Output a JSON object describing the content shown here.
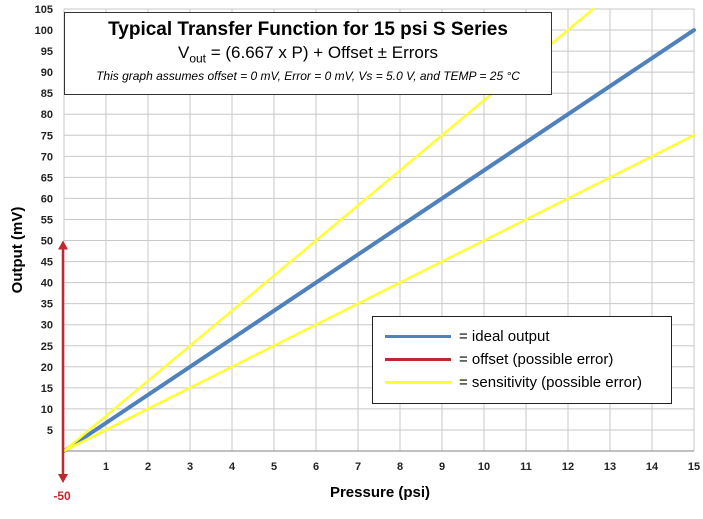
{
  "chart_data": {
    "type": "line",
    "title": "Typical Transfer Function for 15 psi S Series",
    "formula": {
      "prefix": "V",
      "subscript": "out",
      "rest": " = (6.667 x  P) + Offset ± Errors"
    },
    "note": "This graph assumes offset = 0 mV, Error = 0 mV, Vs = 5.0 V, and TEMP = 25 °C",
    "xlabel": "Pressure (psi)",
    "ylabel": "Output (mV)",
    "xlim": [
      0,
      15
    ],
    "ylim": [
      0,
      105
    ],
    "x_ticks": [
      "1",
      "2",
      "3",
      "4",
      "5",
      "6",
      "7",
      "8",
      "9",
      "10",
      "11",
      "12",
      "13",
      "14",
      "15"
    ],
    "y_ticks": [
      "5",
      "10",
      "15",
      "20",
      "25",
      "30",
      "35",
      "40",
      "45",
      "50",
      "55",
      "60",
      "65",
      "70",
      "75",
      "80",
      "85",
      "90",
      "95",
      "100",
      "105"
    ],
    "offset_label": "-50",
    "grid": true,
    "legend_position": "bottom-right",
    "series": [
      {
        "name": "ideal output",
        "color": "#4f81bd",
        "x": [
          0,
          15
        ],
        "y": [
          0,
          100
        ]
      },
      {
        "name": "sensitivity (possible error)",
        "color": "#ffff33",
        "x": [
          0,
          12.6
        ],
        "y": [
          0,
          105
        ]
      },
      {
        "name": "sensitivity (possible error)",
        "color": "#ffff33",
        "x": [
          0,
          15
        ],
        "y": [
          0,
          75
        ]
      }
    ],
    "offset_arrow": {
      "color": "#c0282d",
      "y_top": 50,
      "y_bottom": -50
    },
    "legend": [
      {
        "label": "= ideal output",
        "color": "#4f81bd"
      },
      {
        "label": "= offset (possible error)",
        "color": "#c0282d"
      },
      {
        "label": "= sensitivity (possible error)",
        "color": "#ffff33"
      }
    ]
  }
}
